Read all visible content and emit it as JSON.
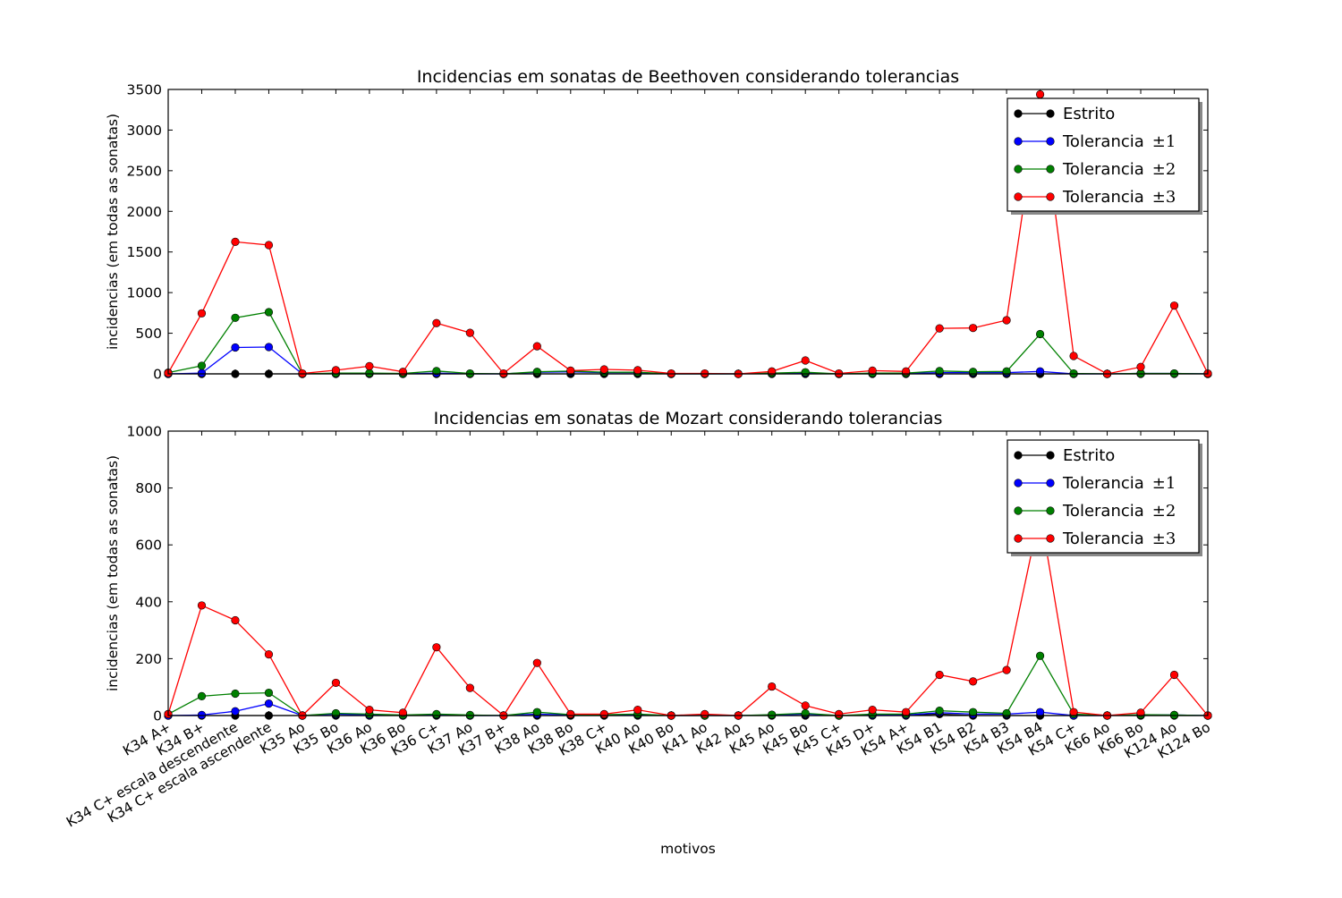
{
  "figure": {
    "xlabel": "motivos"
  },
  "chart_data": [
    {
      "type": "line",
      "title": "Incidencias em sonatas de Beethoven considerando tolerancias",
      "ylabel": "incidencias (em todas as sonatas)",
      "ylim": [
        0,
        3500
      ],
      "yticks": [
        0,
        500,
        1000,
        1500,
        2000,
        2500,
        3000,
        3500
      ],
      "show_xtick_labels": false,
      "legend_position": "top-right",
      "categories": [
        "K34 A+",
        "K34 B+",
        "K34 C+ escala descendente",
        "K34 C+ escala ascendente",
        "K35 Ao",
        "K35 Bo",
        "K36 Ao",
        "K36 Bo",
        "K36 C+",
        "K37 Ao",
        "K37 B+",
        "K38 Ao",
        "K38 Bo",
        "K38 C+",
        "K40 Ao",
        "K40 Bo",
        "K41 Ao",
        "K42 Ao",
        "K45 Ao",
        "K45 Bo",
        "K45 C+",
        "K45 D+",
        "K54 A+",
        "K54 B1",
        "K54 B2",
        "K54 B3",
        "K54 B4",
        "K54 C+",
        "K66 Ao",
        "K66 Bo",
        "K124 Ao",
        "K124 Bo"
      ],
      "series": [
        {
          "name": "Estrito",
          "color": "#000000",
          "values": [
            0,
            0,
            0,
            0,
            0,
            0,
            0,
            0,
            0,
            0,
            0,
            0,
            0,
            0,
            0,
            0,
            0,
            0,
            0,
            0,
            0,
            0,
            0,
            0,
            0,
            0,
            0,
            0,
            0,
            0,
            0,
            0
          ]
        },
        {
          "name": "Tolerancia",
          "name_suffix": "±1",
          "color": "#0000ff",
          "values": [
            0,
            10,
            325,
            330,
            0,
            5,
            5,
            0,
            10,
            0,
            0,
            20,
            25,
            15,
            15,
            0,
            0,
            0,
            5,
            10,
            0,
            5,
            5,
            15,
            15,
            15,
            30,
            0,
            0,
            5,
            5,
            0
          ]
        },
        {
          "name": "Tolerancia",
          "name_suffix": "±2",
          "color": "#008000",
          "values": [
            15,
            100,
            690,
            760,
            0,
            10,
            10,
            5,
            35,
            5,
            0,
            25,
            35,
            20,
            20,
            0,
            0,
            0,
            10,
            20,
            0,
            10,
            10,
            35,
            25,
            30,
            490,
            5,
            0,
            5,
            5,
            0
          ]
        },
        {
          "name": "Tolerancia",
          "name_suffix": "±3",
          "color": "#ff0000",
          "values": [
            10,
            745,
            1625,
            1585,
            5,
            45,
            95,
            25,
            625,
            505,
            5,
            340,
            40,
            55,
            45,
            5,
            5,
            0,
            30,
            165,
            5,
            40,
            30,
            560,
            565,
            660,
            3440,
            220,
            0,
            85,
            840,
            5
          ]
        }
      ]
    },
    {
      "type": "line",
      "title": "Incidencias em sonatas de Mozart considerando tolerancias",
      "ylabel": "incidencias (em todas as sonatas)",
      "ylim": [
        0,
        1000
      ],
      "yticks": [
        0,
        200,
        400,
        600,
        800,
        1000
      ],
      "show_xtick_labels": true,
      "legend_position": "top-right",
      "categories": [
        "K34 A+",
        "K34 B+",
        "K34 C+ escala descendente",
        "K34 C+ escala ascendente",
        "K35 Ao",
        "K35 Bo",
        "K36 Ao",
        "K36 Bo",
        "K36 C+",
        "K37 Ao",
        "K37 B+",
        "K38 Ao",
        "K38 Bo",
        "K38 C+",
        "K40 Ao",
        "K40 Bo",
        "K41 Ao",
        "K42 Ao",
        "K45 Ao",
        "K45 Bo",
        "K45 C+",
        "K45 D+",
        "K54 A+",
        "K54 B1",
        "K54 B2",
        "K54 B3",
        "K54 B4",
        "K54 C+",
        "K66 Ao",
        "K66 Bo",
        "K124 Ao",
        "K124 Bo"
      ],
      "series": [
        {
          "name": "Estrito",
          "color": "#000000",
          "values": [
            0,
            0,
            0,
            0,
            0,
            0,
            0,
            0,
            0,
            0,
            0,
            0,
            0,
            0,
            0,
            0,
            0,
            0,
            0,
            0,
            0,
            0,
            0,
            5,
            0,
            0,
            0,
            0,
            0,
            0,
            0,
            0
          ]
        },
        {
          "name": "Tolerancia",
          "name_suffix": "±1",
          "color": "#0000ff",
          "values": [
            0,
            2,
            15,
            42,
            0,
            5,
            2,
            0,
            3,
            0,
            0,
            5,
            2,
            2,
            3,
            0,
            0,
            0,
            2,
            5,
            0,
            2,
            2,
            10,
            5,
            5,
            12,
            0,
            0,
            2,
            2,
            0
          ]
        },
        {
          "name": "Tolerancia",
          "name_suffix": "±2",
          "color": "#008000",
          "values": [
            5,
            68,
            77,
            80,
            0,
            8,
            5,
            2,
            5,
            2,
            0,
            12,
            3,
            3,
            5,
            0,
            0,
            0,
            3,
            8,
            0,
            5,
            5,
            17,
            12,
            8,
            210,
            5,
            0,
            3,
            2,
            0
          ]
        },
        {
          "name": "Tolerancia",
          "name_suffix": "±3",
          "color": "#ff0000",
          "values": [
            5,
            387,
            335,
            215,
            0,
            115,
            20,
            10,
            240,
            97,
            0,
            185,
            5,
            5,
            20,
            0,
            5,
            0,
            102,
            35,
            5,
            20,
            12,
            143,
            120,
            160,
            715,
            12,
            0,
            10,
            143,
            0
          ]
        }
      ]
    }
  ]
}
